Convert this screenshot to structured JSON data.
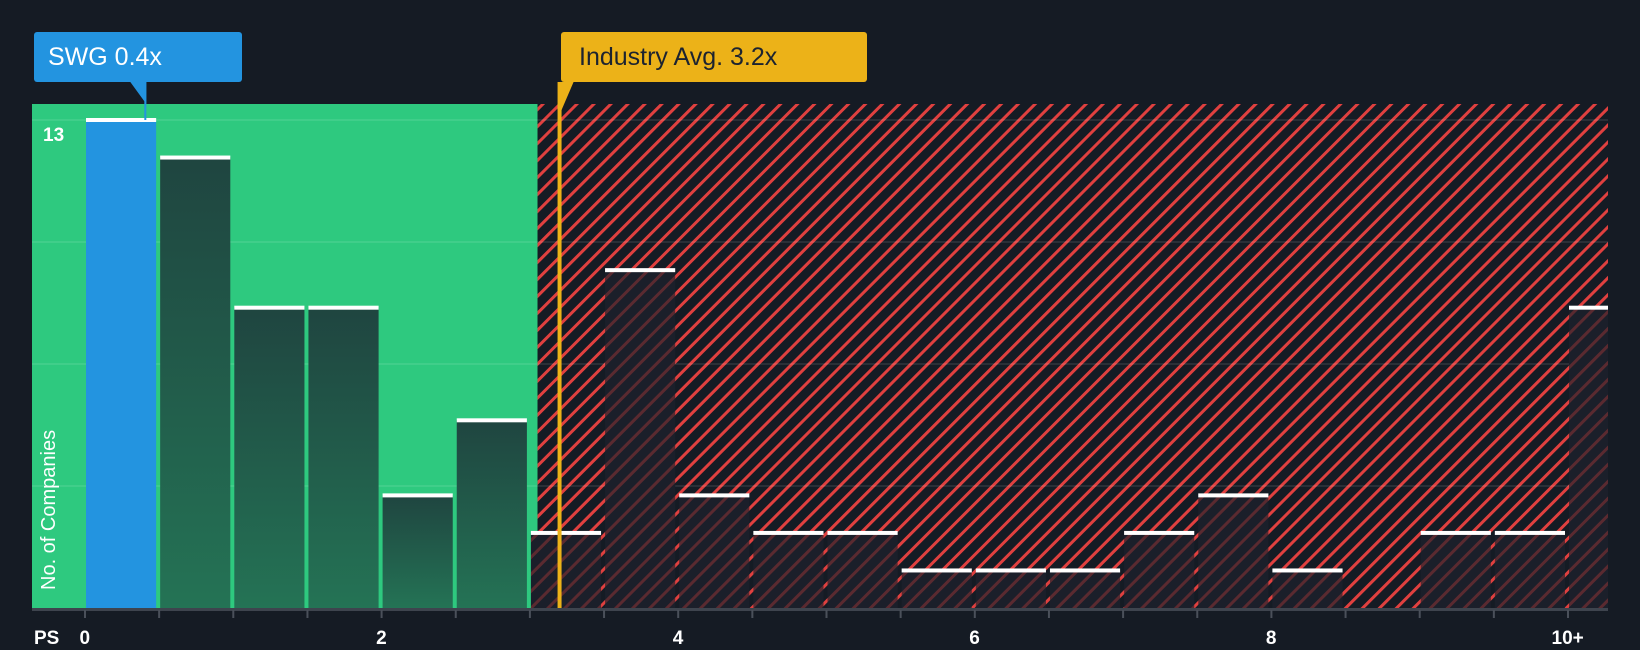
{
  "callouts": {
    "company": {
      "label": "SWG 0.4x",
      "color": "#2394e0"
    },
    "industry": {
      "label": "Industry Avg. 3.2x",
      "color": "#ecb218"
    }
  },
  "axes": {
    "y_title": "No. of Companies",
    "y_max_label": "13",
    "x_title": "PS",
    "x_ticks": [
      "0",
      "2",
      "4",
      "6",
      "8",
      "10+"
    ]
  },
  "colors": {
    "background": "#151b24",
    "undervalued_zone": "#2ec97f",
    "overvalued_hatch": "#e0403f",
    "company_bar": "#2394e0",
    "other_bar": "#1f4a3f",
    "bar_cap": "#ffffff",
    "industry_line": "#ecb218"
  },
  "chart_data": {
    "type": "bar",
    "title": "",
    "xlabel": "PS",
    "ylabel": "No. of Companies",
    "bin_width": 0.5,
    "categories": [
      "0-0.5",
      "0.5-1",
      "1-1.5",
      "1.5-2",
      "2-2.5",
      "2.5-3",
      "3-3.5",
      "3.5-4",
      "4-4.5",
      "4.5-5",
      "5-5.5",
      "5.5-6",
      "6-6.5",
      "6.5-7",
      "7-7.5",
      "7.5-8",
      "8-8.5",
      "8.5-9",
      "9-9.5",
      "9.5-10",
      "10+"
    ],
    "values": [
      13,
      12,
      8,
      8,
      3,
      5,
      2,
      9,
      3,
      2,
      2,
      1,
      1,
      1,
      2,
      3,
      1,
      0,
      2,
      2,
      8
    ],
    "highlight_index": 0,
    "company_value": 0.4,
    "industry_avg": 3.2,
    "ylim": [
      0,
      13
    ],
    "x_ticks": [
      0,
      2,
      4,
      6,
      8,
      10
    ],
    "grid": true,
    "legend": "none"
  }
}
